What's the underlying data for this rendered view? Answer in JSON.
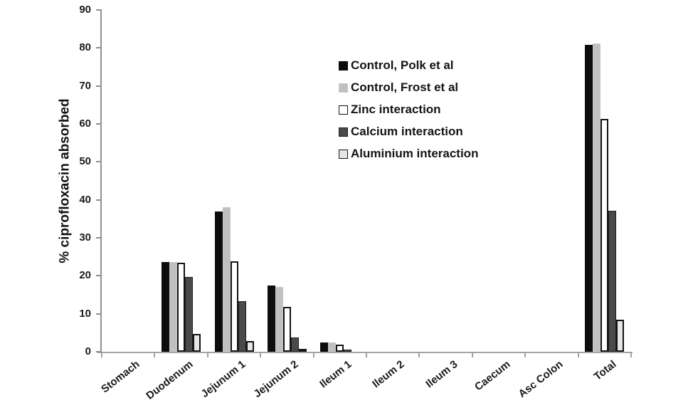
{
  "chart_data": {
    "type": "bar",
    "title": "",
    "ylabel": "% ciprofloxacin absorbed",
    "xlabel": "",
    "ylim": [
      0,
      90
    ],
    "ytick_step": 10,
    "grid": false,
    "legend_position": "upper-center-inside-plot",
    "axis_color": "#9a9a9a",
    "categories": [
      "Stomach",
      "Duodenum",
      "Jejunum 1",
      "Jejunum 2",
      "Ileum 1",
      "Ileum 2",
      "Ileum 3",
      "Caecum",
      "Asc Colon",
      "Total"
    ],
    "series": [
      {
        "name": "Control, Polk et al",
        "fill": "#0d0d0d",
        "border": "#0d0d0d",
        "border_width": 1,
        "values": [
          0,
          23.6,
          37.0,
          17.4,
          2.4,
          0,
          0,
          0,
          0,
          80.8
        ]
      },
      {
        "name": "Control, Frost et al",
        "fill": "#c0c0c0",
        "border": "#c8c8c8",
        "border_width": 1,
        "values": [
          0,
          23.6,
          38.1,
          17.1,
          2.4,
          0,
          0,
          0,
          0,
          81.2
        ]
      },
      {
        "name": "Zinc interaction",
        "fill": "#ffffff",
        "border": "#141414",
        "border_width": 2,
        "values": [
          0,
          23.5,
          23.8,
          11.8,
          1.9,
          0,
          0,
          0,
          0,
          61.4
        ]
      },
      {
        "name": "Calcium interaction",
        "fill": "#4a4a4a",
        "border": "#1c1c1c",
        "border_width": 1,
        "values": [
          0,
          19.6,
          13.4,
          3.7,
          0.6,
          0,
          0,
          0,
          0,
          37.2
        ]
      },
      {
        "name": "Aluminium interaction",
        "fill": "#e6e6e6",
        "border": "#141414",
        "border_width": 2,
        "values": [
          0,
          4.7,
          2.9,
          0.7,
          0,
          0,
          0,
          0,
          0,
          8.4
        ]
      }
    ]
  }
}
